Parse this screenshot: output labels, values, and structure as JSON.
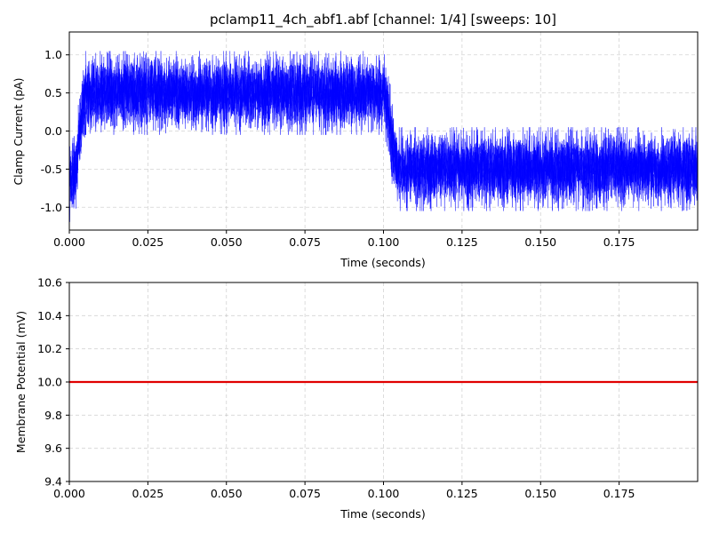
{
  "chart_data": [
    {
      "type": "line",
      "title": "pclamp11_4ch_abf1.abf [channel: 1/4] [sweeps: 10]",
      "xlabel": "Time (seconds)",
      "ylabel": "Clamp Current (pA)",
      "xlim": [
        0.0,
        0.2
      ],
      "ylim": [
        -1.3,
        1.3
      ],
      "xticks": [
        "0.000",
        "0.025",
        "0.050",
        "0.075",
        "0.100",
        "0.125",
        "0.150",
        "0.175"
      ],
      "yticks": [
        "-1.0",
        "-0.5",
        "0.0",
        "0.5",
        "1.0"
      ],
      "grid": true,
      "sweeps": 10,
      "color": "#0000ff",
      "series": [
        {
          "x": [
            0.0,
            0.002,
            0.004,
            0.005,
            0.1,
            0.1015,
            0.103,
            0.1045,
            0.2
          ],
          "values": [
            -0.65,
            -0.55,
            0.25,
            0.5,
            0.5,
            0.3,
            -0.25,
            -0.5,
            -0.5
          ],
          "noise_peak": 0.55
        }
      ]
    },
    {
      "type": "line",
      "title": "",
      "xlabel": "Time (seconds)",
      "ylabel": "Membrane Potential (mV)",
      "xlim": [
        0.0,
        0.2
      ],
      "ylim": [
        9.4,
        10.6
      ],
      "xticks": [
        "0.000",
        "0.025",
        "0.050",
        "0.075",
        "0.100",
        "0.125",
        "0.150",
        "0.175"
      ],
      "yticks": [
        "9.4",
        "9.6",
        "9.8",
        "10.0",
        "10.2",
        "10.4",
        "10.6"
      ],
      "grid": true,
      "color": "#e00000",
      "series": [
        {
          "x": [
            0.0,
            0.2
          ],
          "values": [
            10.0,
            10.0
          ]
        }
      ]
    }
  ]
}
